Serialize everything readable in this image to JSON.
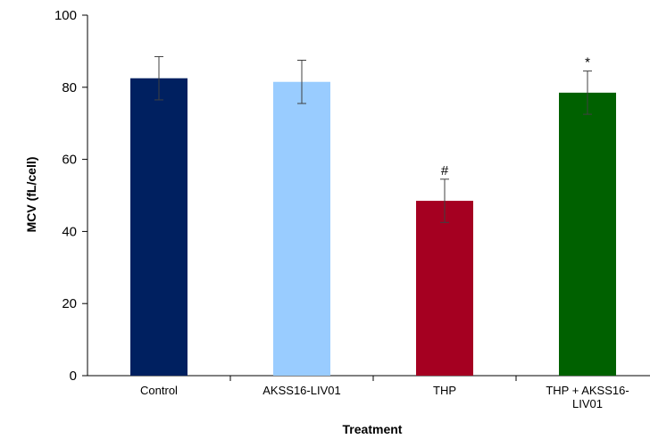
{
  "chart_data": {
    "type": "bar",
    "title": "",
    "xlabel": "Treatment",
    "ylabel": "MCV (fL/cell)",
    "ylim": [
      0,
      100
    ],
    "yticks": [
      "0",
      "20",
      "40",
      "60",
      "80",
      "100"
    ],
    "grid": false,
    "categories": [
      [
        "Control"
      ],
      [
        "AKSS16-LIV01"
      ],
      [
        "THP"
      ],
      [
        "THP + AKSS16-",
        "LIV01"
      ]
    ],
    "values": [
      82.5,
      81.5,
      48.5,
      78.5
    ],
    "errors": [
      6,
      6,
      6,
      6
    ],
    "colors": [
      "#002060",
      "#99CCFF",
      "#A50021",
      "#006100"
    ],
    "annotations": [
      "",
      "",
      "#",
      "*"
    ]
  }
}
